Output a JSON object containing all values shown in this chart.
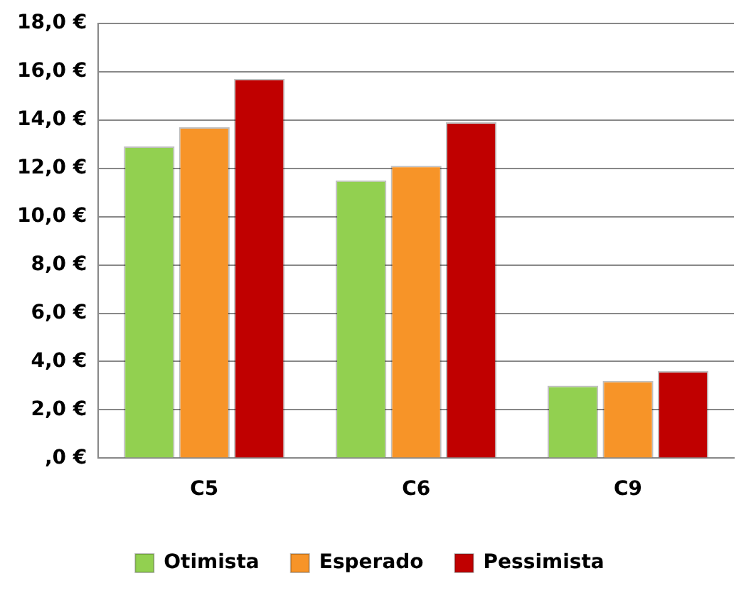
{
  "chart_data": {
    "type": "bar",
    "categories": [
      "C5",
      "C6",
      "C9"
    ],
    "series": [
      {
        "name": "Otimista",
        "color": "#92d050",
        "values": [
          12.9,
          11.5,
          3.0
        ]
      },
      {
        "name": "Esperado",
        "color": "#f79428",
        "values": [
          13.7,
          12.1,
          3.2
        ]
      },
      {
        "name": "Pessimista",
        "color": "#c00000",
        "values": [
          15.7,
          13.9,
          3.6
        ]
      }
    ],
    "ylim": [
      0,
      18
    ],
    "yticks": [
      {
        "value": 0,
        "label": ",0 €"
      },
      {
        "value": 2,
        "label": "2,0 €"
      },
      {
        "value": 4,
        "label": "4,0 €"
      },
      {
        "value": 6,
        "label": "6,0 €"
      },
      {
        "value": 8,
        "label": "8,0 €"
      },
      {
        "value": 10,
        "label": "10,0 €"
      },
      {
        "value": 12,
        "label": "12,0 €"
      },
      {
        "value": 14,
        "label": "14,0 €"
      },
      {
        "value": 16,
        "label": "16,0 €"
      },
      {
        "value": 18,
        "label": "18,0 €"
      }
    ],
    "grid": "y",
    "legend": "bottom"
  }
}
